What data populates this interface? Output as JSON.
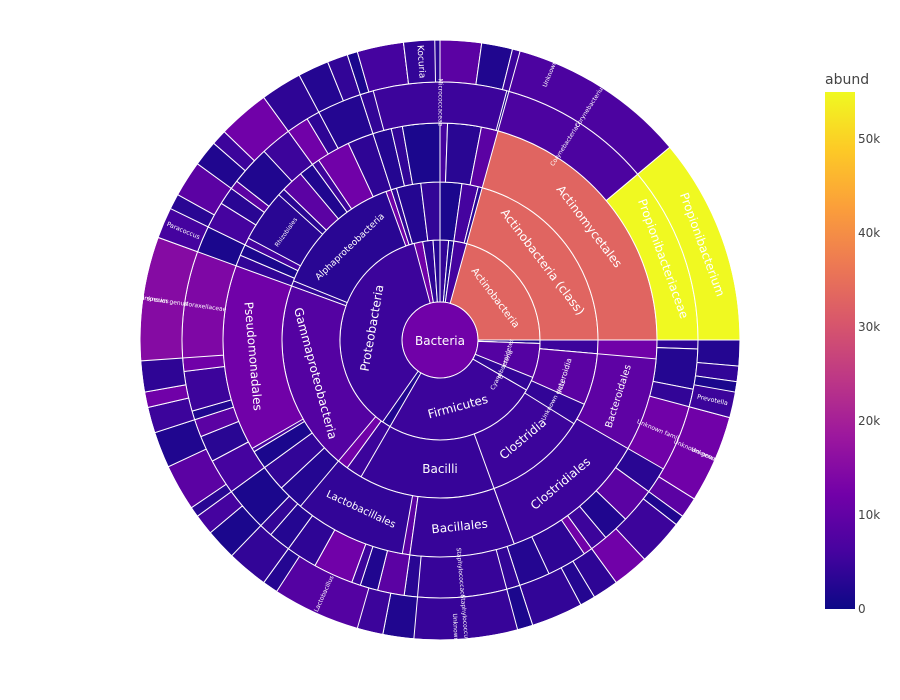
{
  "chart_data": {
    "type": "sunburst",
    "colorbar": {
      "title": "abund",
      "range": [
        0,
        55000
      ],
      "ticks": [
        {
          "value": 0,
          "label": "0"
        },
        {
          "value": 10000,
          "label": "10k"
        },
        {
          "value": 20000,
          "label": "20k"
        },
        {
          "value": 30000,
          "label": "30k"
        },
        {
          "value": 40000,
          "label": "40k"
        },
        {
          "value": 50000,
          "label": "50k"
        }
      ],
      "colorscale": [
        "#0d0887",
        "#46039f",
        "#7201a8",
        "#9c179e",
        "#bd3786",
        "#d8576b",
        "#ed7953",
        "#fb9f3a",
        "#fdca26",
        "#f0f921"
      ]
    },
    "root": {
      "name": "Bacteria",
      "value": 220000
    },
    "segments": [
      {
        "level": 1,
        "name": "Actinobacteria",
        "value": 66000,
        "color_value": 33000
      },
      {
        "level": 2,
        "name": "Actinobacteria (class)",
        "value": 66000,
        "color_value": 33000
      },
      {
        "level": 3,
        "name": "Actinomycetales",
        "value": 66000,
        "color_value": 33000
      },
      {
        "level": 4,
        "name": "Propionibacteriaceae",
        "value": 29500,
        "color_value": 55000
      },
      {
        "level": 5,
        "name": "Propionibacterium",
        "value": 29500,
        "color_value": 55000
      },
      {
        "level": 6,
        "name": "Propionibacterium acnes",
        "value": 29500,
        "color_value": 55000
      },
      {
        "level": 4,
        "name": "Corynebacteriaceae",
        "value": 13000,
        "color_value": 7000
      },
      {
        "level": 5,
        "name": "Corynebacterium",
        "value": 13000,
        "color_value": 7000
      },
      {
        "level": 6,
        "name": "Unknown species",
        "value": 6500,
        "color_value": 6000
      },
      {
        "level": 4,
        "name": "Micrococcaceae",
        "value": 5500,
        "color_value": 5000
      },
      {
        "level": 5,
        "name": "Kocuria",
        "value": 1800,
        "color_value": 4000
      },
      {
        "level": 1,
        "name": "Firmicutes",
        "value": 50000,
        "color_value": 5000
      },
      {
        "level": 2,
        "name": "Bacilli",
        "value": 30000,
        "color_value": 4500
      },
      {
        "level": 3,
        "name": "Lactobacillales",
        "value": 15000,
        "color_value": 4000
      },
      {
        "level": 3,
        "name": "Bacillales",
        "value": 14000,
        "color_value": 4500
      },
      {
        "level": 4,
        "name": "Staphylococcaceae",
        "value": 9000,
        "color_value": 4500
      },
      {
        "level": 5,
        "name": "Staphylococcus",
        "value": 9000,
        "color_value": 4500
      },
      {
        "level": 6,
        "name": "Unknown species",
        "value": 6000,
        "color_value": 3500
      },
      {
        "level": 5,
        "name": "Lactobacillus",
        "value": 4000,
        "color_value": 8000
      },
      {
        "level": 2,
        "name": "Clostridia",
        "value": 20000,
        "color_value": 5000
      },
      {
        "level": 3,
        "name": "Clostridiales",
        "value": 20000,
        "color_value": 5000
      },
      {
        "level": 1,
        "name": "Proteobacteria",
        "value": 58000,
        "color_value": 5000
      },
      {
        "level": 2,
        "name": "Alphaproteobacteria",
        "value": 22000,
        "color_value": 3000
      },
      {
        "level": 3,
        "name": "Rhizobiales",
        "value": 8000,
        "color_value": 3000
      },
      {
        "level": 2,
        "name": "Gammaproteobacteria",
        "value": 26000,
        "color_value": 8000
      },
      {
        "level": 3,
        "name": "Pseudomonadales",
        "value": 15000,
        "color_value": 12000
      },
      {
        "level": 4,
        "name": "Moraxellaceae",
        "value": 12000,
        "color_value": 14000
      },
      {
        "level": 5,
        "name": "Unknown genus",
        "value": 7500,
        "color_value": 15000
      },
      {
        "level": 6,
        "name": "Unknown species",
        "value": 7500,
        "color_value": 15000
      },
      {
        "level": 5,
        "name": "Paracoccus",
        "value": 1300,
        "color_value": 6000
      },
      {
        "level": 1,
        "name": "Bacteroidetes",
        "value": 25000,
        "color_value": 8000
      },
      {
        "level": 2,
        "name": "Bacteroidia",
        "value": 20000,
        "color_value": 9000
      },
      {
        "level": 3,
        "name": "Bacteroidales",
        "value": 18000,
        "color_value": 9500
      },
      {
        "level": 4,
        "name": "Unknown family",
        "value": 10000,
        "color_value": 12000
      },
      {
        "level": 5,
        "name": "Unknown genus",
        "value": 10000,
        "color_value": 12000
      },
      {
        "level": 6,
        "name": "Unknown species",
        "value": 10000,
        "color_value": 12000
      },
      {
        "level": 5,
        "name": "Prevotella",
        "value": 3000,
        "color_value": 5000
      },
      {
        "level": 1,
        "name": "Cyanobacteria",
        "value": 8000,
        "color_value": 4000
      },
      {
        "level": 2,
        "name": "Unknown class",
        "value": 7000,
        "color_value": 4000
      }
    ]
  }
}
